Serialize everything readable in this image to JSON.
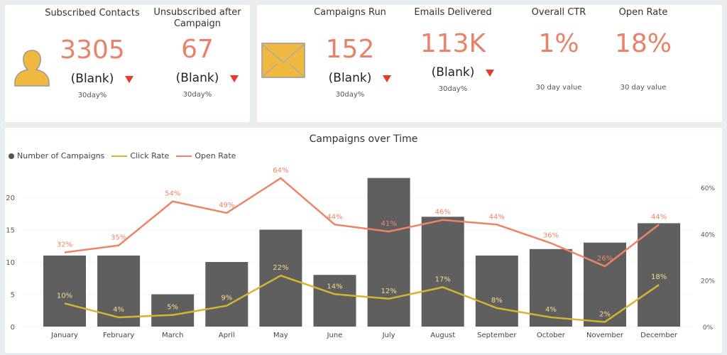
{
  "contacts": {
    "icon": "person-icon",
    "kpis": [
      {
        "title": "Subscribed Contacts",
        "value": "3305",
        "sub": "(Blank)",
        "note": "30day%"
      },
      {
        "title": "Unsubscribed after Campaign",
        "value": "67",
        "sub": "(Blank)",
        "note": "30day%"
      }
    ]
  },
  "campaigns": {
    "icon": "envelope-icon",
    "kpis": [
      {
        "title": "Campaigns Run",
        "value": "152",
        "sub": "(Blank)",
        "note": "30day%"
      },
      {
        "title": "Emails Delivered",
        "value": "113K",
        "sub": "(Blank)",
        "note": "30day%"
      },
      {
        "title": "Overall CTR",
        "value": "1%",
        "note": "30 day value"
      },
      {
        "title": "Open Rate",
        "value": "18%",
        "note": "30 day value"
      }
    ]
  },
  "colors": {
    "bar": "#5f5f5f",
    "click": "#d4b531",
    "open": "#ee8467",
    "value": "#e8826a",
    "trend_down": "#e8392a"
  },
  "chart_data": {
    "type": "bar+line",
    "title": "Campaigns over Time",
    "categories": [
      "January",
      "February",
      "March",
      "April",
      "May",
      "June",
      "July",
      "August",
      "September",
      "October",
      "November",
      "December"
    ],
    "series": [
      {
        "name": "Number of Campaigns",
        "type": "bar",
        "axis": "left",
        "values": [
          11,
          11,
          5,
          10,
          15,
          8,
          23,
          17,
          11,
          12,
          13,
          16
        ]
      },
      {
        "name": "Click Rate",
        "type": "line",
        "axis": "right",
        "values": [
          10,
          4,
          5,
          9,
          22,
          14,
          12,
          17,
          8,
          4,
          2,
          18
        ],
        "labels": [
          "10%",
          "4%",
          "5%",
          "9%",
          "22%",
          "14%",
          "12%",
          "17%",
          "8%",
          "4%",
          "2%",
          "18%"
        ]
      },
      {
        "name": "Open Rate",
        "type": "line",
        "axis": "right",
        "values": [
          32,
          35,
          54,
          49,
          64,
          44,
          41,
          46,
          44,
          36,
          26,
          44
        ],
        "labels": [
          "32%",
          "35%",
          "54%",
          "49%",
          "64%",
          "44%",
          "41%",
          "46%",
          "44%",
          "36%",
          "26%",
          "44%"
        ]
      }
    ],
    "left_axis": {
      "ticks": [
        "0",
        "5",
        "10",
        "15",
        "20"
      ],
      "range": [
        0,
        25
      ]
    },
    "right_axis": {
      "ticks": [
        "0%",
        "20%",
        "40%",
        "60%"
      ],
      "range": [
        0,
        70
      ]
    },
    "legend": "top-left",
    "grid": true
  }
}
